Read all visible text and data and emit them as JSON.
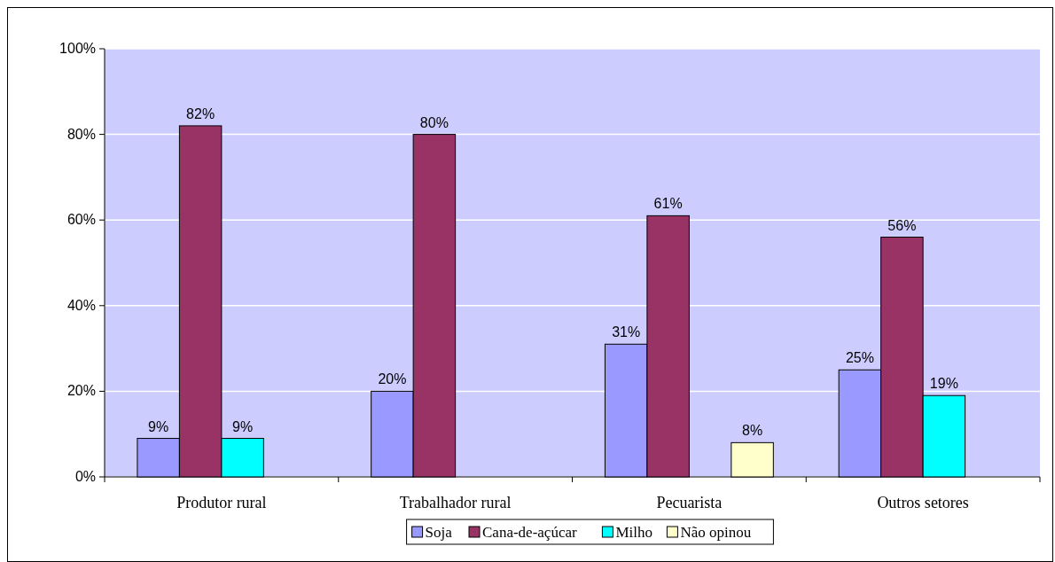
{
  "chart_data": {
    "type": "bar",
    "categories": [
      "Produtor rural",
      "Trabalhador rural",
      "Pecuarista",
      "Outros setores"
    ],
    "series": [
      {
        "name": "Soja",
        "color": "#9999ff",
        "values": [
          9,
          20,
          31,
          25
        ],
        "value_labels": [
          "9%",
          "20%",
          "31%",
          "25%"
        ]
      },
      {
        "name": "Cana-de-açúcar",
        "color": "#993366",
        "values": [
          82,
          80,
          61,
          56
        ],
        "value_labels": [
          "82%",
          "80%",
          "61%",
          "56%"
        ]
      },
      {
        "name": "Milho",
        "color": "#00ffff",
        "values": [
          9,
          null,
          null,
          19
        ],
        "value_labels": [
          "9%",
          null,
          null,
          "19%"
        ]
      },
      {
        "name": "Não opinou",
        "color": "#ffffcc",
        "values": [
          null,
          null,
          8,
          null
        ],
        "value_labels": [
          null,
          null,
          "8%",
          null
        ]
      }
    ],
    "ylim": [
      0,
      100
    ],
    "yticks": [
      {
        "value": 0,
        "label": "0%"
      },
      {
        "value": 20,
        "label": "20%"
      },
      {
        "value": 40,
        "label": "40%"
      },
      {
        "value": 60,
        "label": "60%"
      },
      {
        "value": 80,
        "label": "80%"
      },
      {
        "value": 100,
        "label": "100%"
      }
    ],
    "grid": "y",
    "legend": "bottom"
  }
}
